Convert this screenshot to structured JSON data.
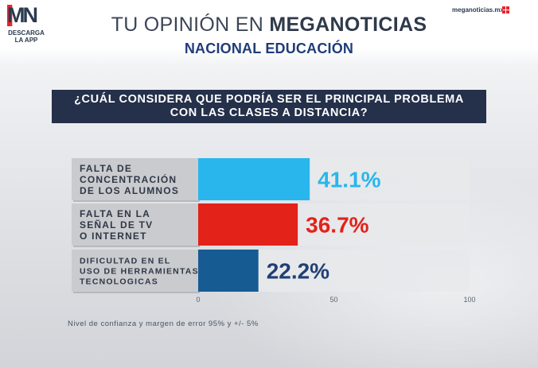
{
  "brand": {
    "logo_text": "MN",
    "logo_sub": "DESCARGA LA APP",
    "site": "meganoticias.mx"
  },
  "header": {
    "title_light": "TU OPINIÓN EN ",
    "title_bold": "MEGANOTICIAS",
    "subtitle": "NACIONAL EDUCACIÓN"
  },
  "question": "¿CUÁL CONSIDERA QUE PODRÍA SER EL PRINCIPAL PROBLEMA CON LAS CLASES A DISTANCIA?",
  "footnote": "Nivel de confianza y margen de error 95% y +/- 5%",
  "colors": {
    "bar_1": "#29b6ec",
    "bar_2": "#e32219",
    "bar_3": "#175b93",
    "label_1": "#29b6ec",
    "label_2": "#e32219",
    "label_3": "#1f3f74",
    "category_box": "#c9cbcf",
    "track": "#e8e9eb"
  },
  "chart_data": {
    "type": "bar",
    "orientation": "horizontal",
    "categories": [
      [
        "FALTA DE",
        "CONCENTRACIÓN",
        "DE LOS ALUMNOS"
      ],
      [
        "FALTA EN LA",
        "SEÑAL DE TV",
        "O INTERNET"
      ],
      [
        "DIFICULTAD EN EL",
        "USO DE HERRAMIENTAS",
        "TECNOLOGICAS"
      ]
    ],
    "values": [
      41.1,
      36.7,
      22.2
    ],
    "value_labels": [
      "41.1%",
      "36.7%",
      "22.2%"
    ],
    "xlim": [
      0,
      100
    ],
    "ticks": [
      0,
      50,
      100
    ],
    "tick_labels": [
      "0",
      "50",
      "100"
    ],
    "grid": false,
    "legend": "none"
  }
}
